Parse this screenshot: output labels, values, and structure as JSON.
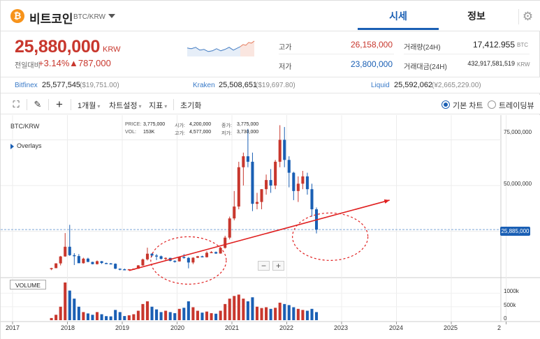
{
  "header": {
    "coin_symbol": "₿",
    "coin_name": "비트코인",
    "pair": "BTC/KRW",
    "tabs": [
      {
        "label": "시세"
      },
      {
        "label": "정보"
      }
    ],
    "gear_icon": "gear-icon"
  },
  "summary": {
    "price": "25,880,000",
    "unit": "KRW",
    "change_label": "전일대비",
    "change_pct": "+3.14%",
    "change_amt": "▲787,000",
    "high_label": "고가",
    "high": "26,158,000",
    "low_label": "저가",
    "low": "23,800,000",
    "volume_label": "거래량(24H)",
    "volume": "17,412.955",
    "volume_unit": "BTC",
    "amount_label": "거래대금(24H)",
    "amount": "432,917,581,519",
    "amount_unit": "KRW"
  },
  "exchanges": [
    {
      "name": "Bitfinex",
      "value": "25,577,545",
      "usd": "($19,751.00)"
    },
    {
      "name": "Kraken",
      "value": "25,508,651",
      "usd": "($19,697.80)"
    },
    {
      "name": "Liquid",
      "value": "25,592,062",
      "usd": "(¥2,665,229.00)"
    }
  ],
  "toolbar": {
    "period": "1개월",
    "chart_settings": "차트설정",
    "indicator": "지표",
    "reset": "초기화",
    "basic_chart": "기본 차트",
    "trading_view": "트레이딩뷰"
  },
  "chart": {
    "symbol": "BTC/KRW",
    "overlays": "Overlays",
    "info": {
      "price_label": "PRICE:",
      "price": "3,775,000",
      "vol_label": "VOL:",
      "vol": "153K",
      "open_label": "시가:",
      "open": "4,200,000",
      "high_label": "고가:",
      "high": "4,577,000",
      "close_label": "종가:",
      "close": "3,775,000",
      "low_label": "저가:",
      "low": "3,730,000"
    },
    "volume_label": "VOLUME",
    "zoom_out": "−",
    "zoom_in": "+",
    "current_price_tag": "25,885,000",
    "y_ticks": [
      "75,000,000",
      "50,000,000"
    ],
    "vol_ticks": [
      "1000k",
      "500k",
      "0"
    ],
    "x_ticks": [
      "2017",
      "2018",
      "2019",
      "2020",
      "2021",
      "2022",
      "2023",
      "2024",
      "2025",
      "2"
    ]
  },
  "chart_data": {
    "type": "candlestick",
    "title": "BTC/KRW",
    "interval": "1 month",
    "x_start": "2017-09",
    "ylim": [
      0,
      87000000
    ],
    "current_price": 25885000,
    "colors": {
      "up": "#c8372d",
      "down": "#1a5fb4",
      "trendline": "#e02020"
    },
    "candles": [
      [
        4500000,
        5000000,
        3700000,
        4800000,
        80
      ],
      [
        4800000,
        7500000,
        4800000,
        7400000,
        200
      ],
      [
        7400000,
        11500000,
        6300000,
        11200000,
        500
      ],
      [
        11200000,
        24000000,
        11000000,
        16500000,
        1400
      ],
      [
        16500000,
        28500000,
        11500000,
        11900000,
        1100
      ],
      [
        11900000,
        13000000,
        6500000,
        11400000,
        800
      ],
      [
        11400000,
        12500000,
        7900000,
        7500000,
        500
      ],
      [
        7500000,
        10500000,
        7300000,
        10000000,
        300
      ],
      [
        10000000,
        10500000,
        8100000,
        8200000,
        250
      ],
      [
        8200000,
        8300000,
        6900000,
        7000000,
        200
      ],
      [
        7000000,
        9000000,
        6800000,
        8600000,
        300
      ],
      [
        8600000,
        8700000,
        7100000,
        7600000,
        220
      ],
      [
        7600000,
        7800000,
        7100000,
        7400000,
        150
      ],
      [
        7400000,
        7600000,
        6900000,
        7200000,
        140
      ],
      [
        7200000,
        7400000,
        4300000,
        4500000,
        380
      ],
      [
        4500000,
        4600000,
        3600000,
        4200000,
        300
      ],
      [
        4200000,
        4577000,
        3730000,
        3775000,
        153
      ],
      [
        3775000,
        4300000,
        3700000,
        4200000,
        180
      ],
      [
        4200000,
        4600000,
        4100000,
        4500000,
        220
      ],
      [
        4500000,
        6500000,
        4400000,
        6300000,
        350
      ],
      [
        6300000,
        10000000,
        6100000,
        9600000,
        600
      ],
      [
        9600000,
        16000000,
        9000000,
        12700000,
        700
      ],
      [
        12700000,
        13000000,
        11000000,
        11700000,
        500
      ],
      [
        11700000,
        12500000,
        9200000,
        11300000,
        400
      ],
      [
        11300000,
        11700000,
        9500000,
        9900000,
        300
      ],
      [
        9900000,
        10700000,
        8800000,
        10400000,
        350
      ],
      [
        10400000,
        10500000,
        8500000,
        8800000,
        300
      ],
      [
        8800000,
        9100000,
        7800000,
        8500000,
        260
      ],
      [
        8500000,
        11000000,
        8400000,
        10900000,
        420
      ],
      [
        10900000,
        12500000,
        10000000,
        10400000,
        460
      ],
      [
        10400000,
        10900000,
        4700000,
        7900000,
        700
      ],
      [
        7900000,
        10800000,
        7000000,
        10500000,
        480
      ],
      [
        10500000,
        11500000,
        10300000,
        11300000,
        350
      ],
      [
        11300000,
        11600000,
        10700000,
        10800000,
        280
      ],
      [
        10800000,
        14000000,
        10600000,
        13200000,
        320
      ],
      [
        13200000,
        14100000,
        13000000,
        13600000,
        260
      ],
      [
        13600000,
        13900000,
        12600000,
        12800000,
        240
      ],
      [
        12800000,
        16300000,
        12700000,
        15900000,
        350
      ],
      [
        15900000,
        22500000,
        15500000,
        21500000,
        600
      ],
      [
        21500000,
        33000000,
        20500000,
        32000000,
        800
      ],
      [
        32000000,
        47000000,
        31000000,
        38500000,
        900
      ],
      [
        38500000,
        63000000,
        37000000,
        60000000,
        950
      ],
      [
        60000000,
        68000000,
        50000000,
        66000000,
        800
      ],
      [
        66000000,
        81000000,
        60000000,
        63000000,
        700
      ],
      [
        63000000,
        68000000,
        36000000,
        40000000,
        850
      ],
      [
        40000000,
        46000000,
        37000000,
        41000000,
        500
      ],
      [
        41000000,
        48000000,
        37000000,
        48000000,
        450
      ],
      [
        48000000,
        56000000,
        45000000,
        53000000,
        480
      ],
      [
        53000000,
        59000000,
        46000000,
        50000000,
        420
      ],
      [
        50000000,
        64000000,
        48000000,
        63000000,
        460
      ],
      [
        63000000,
        83000000,
        60000000,
        75000000,
        650
      ],
      [
        75000000,
        82000000,
        60000000,
        64000000,
        600
      ],
      [
        64000000,
        66000000,
        49000000,
        57000000,
        560
      ],
      [
        57000000,
        57500000,
        42000000,
        47000000,
        480
      ],
      [
        47000000,
        55000000,
        41000000,
        51000000,
        420
      ],
      [
        51000000,
        58000000,
        48000000,
        55000000,
        380
      ],
      [
        55000000,
        57000000,
        45000000,
        48000000,
        350
      ],
      [
        48000000,
        51000000,
        33000000,
        37000000,
        420
      ],
      [
        37000000,
        38000000,
        23800000,
        25880000,
        300
      ]
    ],
    "candle_fields": [
      "open",
      "high",
      "low",
      "close",
      "volume_k"
    ],
    "annotations": [
      {
        "type": "trendline",
        "from": [
          "2019-02",
          3500000
        ],
        "to": [
          "2023-11",
          42000000
        ]
      },
      {
        "type": "ellipse",
        "center": [
          "2020-03",
          9000000
        ]
      },
      {
        "type": "ellipse",
        "center": [
          "2022-10",
          22000000
        ]
      }
    ]
  }
}
